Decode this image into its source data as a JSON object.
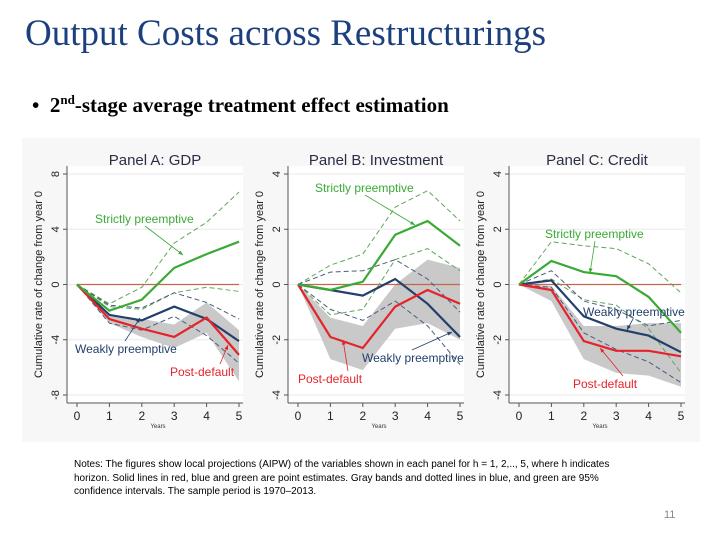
{
  "title": "Output Costs across Restructurings",
  "bullet": {
    "prefix": "2",
    "sup": "nd",
    "text": "-stage average treatment effect estimation"
  },
  "notes": "Notes: The figures show local projections (AIPW) of the variables shown in each panel for h = 1, 2,.., 5, where h indicates horizon. Solid lines in red, blue and green are point estimates. Gray bands and dotted lines in blue, and green are 95% confidence intervals. The sample period is 1970–2013.",
  "page_number": "11",
  "colors": {
    "strictly": "#3aa935",
    "weakly": "#22406b",
    "post_default": "#e5232b",
    "band": "#c9c9c9",
    "zero_line": "#c2674a"
  },
  "chart_data": [
    {
      "type": "line",
      "title": "Panel A: GDP",
      "xlabel": "Years",
      "ylabel": "Cumulative rate of change from year 0",
      "x": [
        0,
        1,
        2,
        3,
        4,
        5
      ],
      "xlim": [
        0,
        5
      ],
      "ylim": [
        -8,
        8
      ],
      "yticks": [
        "-8",
        "-4",
        "0",
        "4",
        "8"
      ],
      "xticks": [
        "0",
        "1",
        "2",
        "3",
        "4",
        "5"
      ],
      "grid": true,
      "series": [
        {
          "name": "Strictly preemptive",
          "values": [
            0,
            -1.9,
            -1.1,
            1.2,
            2.2,
            3.1
          ],
          "ci_upper": [
            0,
            -1.4,
            -0.2,
            3.0,
            4.5,
            6.7
          ],
          "ci_lower": [
            0,
            -1.6,
            -1.8,
            -0.6,
            -0.2,
            -0.5
          ]
        },
        {
          "name": "Weakly preemptive",
          "values": [
            0,
            -2.2,
            -2.6,
            -1.6,
            -2.5,
            -4.1
          ],
          "ci_upper": [
            0,
            -1.5,
            -1.7,
            -0.6,
            -1.3,
            -2.5
          ],
          "ci_lower": [
            0,
            -2.8,
            -3.3,
            -2.3,
            -3.7,
            -5.7
          ]
        },
        {
          "name": "Post-default",
          "values": [
            0,
            -2.5,
            -3.2,
            -3.8,
            -2.4,
            -5.1
          ],
          "ci_upper": [
            0,
            -2.2,
            -2.5,
            -2.9,
            -1.3,
            -3.3
          ],
          "ci_lower": [
            0,
            -2.8,
            -3.8,
            -4.6,
            -3.5,
            -7.0
          ]
        }
      ]
    },
    {
      "type": "line",
      "title": "Panel B: Investment",
      "xlabel": "Years",
      "ylabel": "Cumulative rate of change from year 0",
      "x": [
        0,
        1,
        2,
        3,
        4,
        5
      ],
      "xlim": [
        0,
        5
      ],
      "ylim": [
        -4,
        4
      ],
      "yticks": [
        "-4",
        "-2",
        "0",
        "2",
        "4"
      ],
      "xticks": [
        "0",
        "1",
        "2",
        "3",
        "4",
        "5"
      ],
      "grid": true,
      "series": [
        {
          "name": "Strictly preemptive",
          "values": [
            0,
            -0.2,
            0.1,
            1.8,
            2.3,
            1.4
          ],
          "ci_upper": [
            0,
            0.7,
            1.1,
            2.8,
            3.4,
            2.3
          ],
          "ci_lower": [
            0,
            -1.1,
            -0.9,
            0.9,
            1.3,
            0.5
          ]
        },
        {
          "name": "Weakly preemptive",
          "values": [
            0,
            -0.2,
            -0.4,
            0.2,
            -0.7,
            -1.9
          ],
          "ci_upper": [
            0,
            0.45,
            0.5,
            0.9,
            0.2,
            -1.0
          ],
          "ci_lower": [
            0,
            -0.9,
            -1.3,
            -0.6,
            -1.5,
            -2.9
          ]
        },
        {
          "name": "Post-default",
          "values": [
            0,
            -1.9,
            -2.3,
            -0.8,
            -0.2,
            -0.7
          ],
          "ci_upper": [
            0,
            -1.2,
            -1.5,
            0.0,
            0.9,
            0.6
          ],
          "ci_lower": [
            0,
            -2.7,
            -3.1,
            -1.6,
            -1.4,
            -2.0
          ]
        }
      ]
    },
    {
      "type": "line",
      "title": "Panel C: Credit",
      "xlabel": "Years",
      "ylabel": "Cumulative rate of change from year 0",
      "x": [
        0,
        1,
        2,
        3,
        4,
        5
      ],
      "xlim": [
        0,
        5
      ],
      "ylim": [
        -4,
        4
      ],
      "yticks": [
        "-4",
        "-2",
        "0",
        "2",
        "4"
      ],
      "xticks": [
        "0",
        "1",
        "2",
        "3",
        "4",
        "5"
      ],
      "grid": true,
      "series": [
        {
          "name": "Strictly preemptive",
          "values": [
            0,
            0.85,
            0.45,
            0.3,
            -0.45,
            -1.75
          ],
          "ci_upper": [
            0,
            1.55,
            1.4,
            1.3,
            0.75,
            -0.3
          ],
          "ci_lower": [
            0,
            0.2,
            -0.55,
            -0.75,
            -1.6,
            -3.2
          ]
        },
        {
          "name": "Weakly preemptive",
          "values": [
            0,
            0.15,
            -1.15,
            -1.6,
            -1.85,
            -2.45
          ],
          "ci_upper": [
            0,
            0.5,
            -0.6,
            -0.9,
            -1.5,
            -1.3
          ],
          "ci_lower": [
            0,
            -0.1,
            -1.75,
            -2.35,
            -2.8,
            -3.55
          ]
        },
        {
          "name": "Post-default",
          "values": [
            0,
            -0.2,
            -2.05,
            -2.4,
            -2.4,
            -2.6
          ],
          "ci_upper": [
            0,
            -0.05,
            -1.5,
            -1.5,
            -1.4,
            -1.4
          ],
          "ci_lower": [
            0,
            -0.6,
            -2.7,
            -3.2,
            -3.3,
            -3.7
          ]
        }
      ]
    }
  ]
}
